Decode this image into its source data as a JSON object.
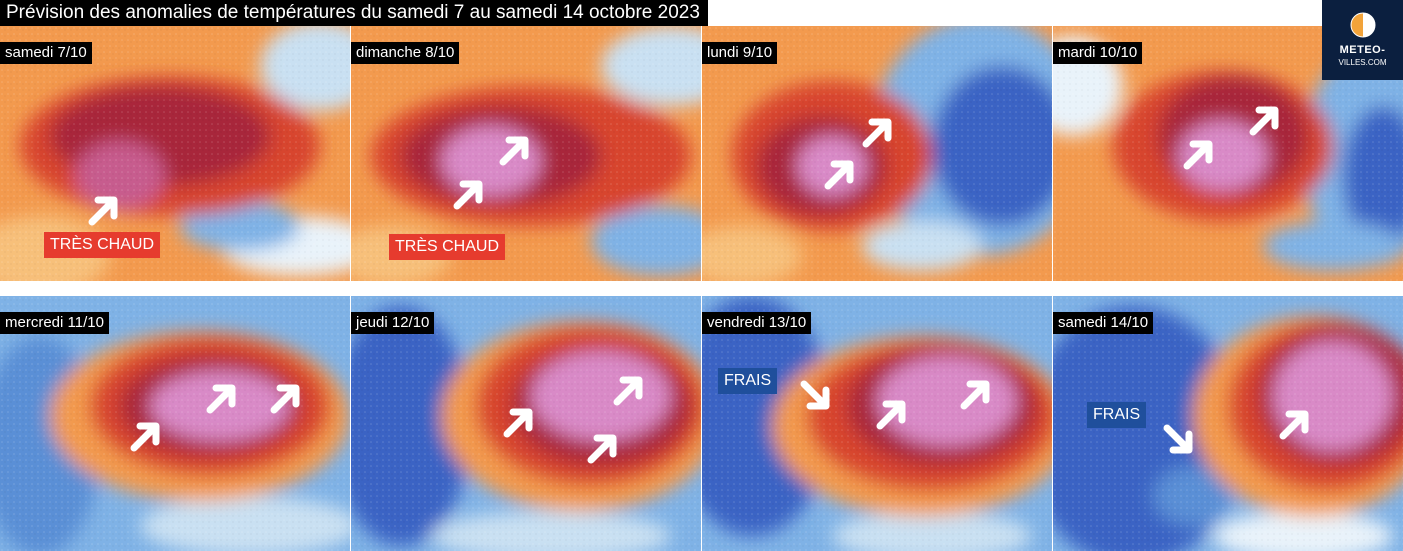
{
  "title": "Prévision des anomalies de températures du samedi 7 au samedi 14 octobre 2023",
  "logo": {
    "line1": "METEO-",
    "line2": "VILLES.COM"
  },
  "panels": [
    {
      "date": "samedi 7/10",
      "tag": "TRÈS CHAUD"
    },
    {
      "date": "dimanche 8/10",
      "tag": "TRÈS CHAUD"
    },
    {
      "date": "lundi 9/10"
    },
    {
      "date": "mardi 10/10"
    },
    {
      "date": "mercredi 11/10"
    },
    {
      "date": "jeudi 12/10"
    },
    {
      "date": "vendredi 13/10",
      "tag": "FRAIS"
    },
    {
      "date": "samedi 14/10",
      "tag": "FRAIS"
    }
  ],
  "colors": {
    "very_cold": "#3a63c4",
    "cold": "#7fb2e6",
    "neutral": "#e9f3fa",
    "warm": "#f39a4e",
    "hot": "#d8452f",
    "very_hot": "#a8253b",
    "extreme": "#d98ac7",
    "tag_hot": "#e63b2e",
    "tag_cool": "#1f4f9c"
  }
}
